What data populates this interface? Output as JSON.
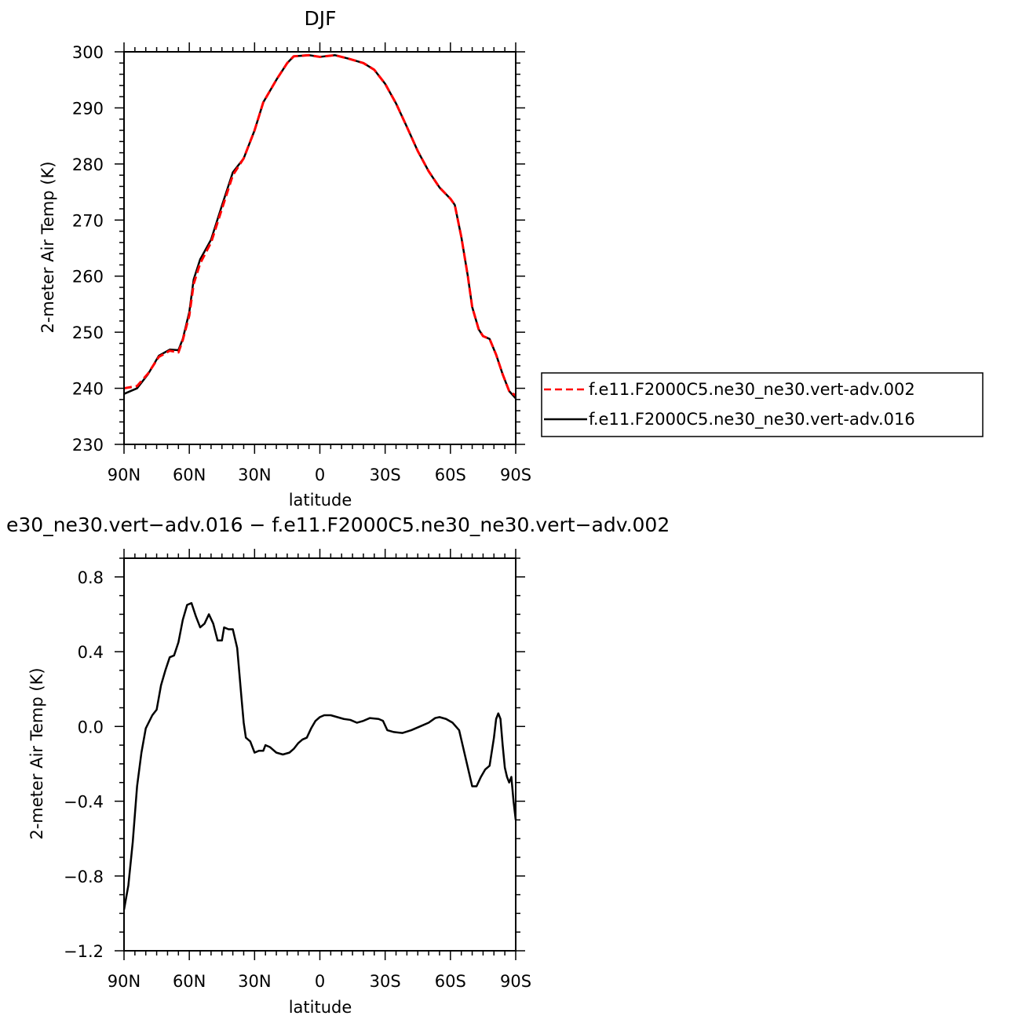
{
  "chart_data": [
    {
      "type": "line",
      "title": "DJF",
      "xlabel": "latitude",
      "ylabel": "2-meter Air Temp (K)",
      "ylim": [
        230,
        300
      ],
      "yticks": [
        230,
        240,
        250,
        260,
        270,
        280,
        290,
        300
      ],
      "xlim": [
        -90,
        90
      ],
      "xticks": [
        -90,
        -60,
        -30,
        0,
        30,
        60,
        90
      ],
      "xtick_labels": [
        "90N",
        "60N",
        "30N",
        "0",
        "30S",
        "60S",
        "90S"
      ],
      "x_axis_note": "x value = latitude position from 90N (-90) to 90S (90)",
      "legend": {
        "placement": "right",
        "entries": [
          "f.e11.F2000C5.ne30_ne30.vert-adv.002",
          "f.e11.F2000C5.ne30_ne30.vert-adv.016"
        ]
      },
      "series": [
        {
          "name": "f.e11.F2000C5.ne30_ne30.vert-adv.002",
          "color": "#ff0000",
          "dash": "dashed",
          "points": [
            [
              -90,
              240.0
            ],
            [
              -84,
              240.4
            ],
            [
              -79,
              242.6
            ],
            [
              -74,
              245.6
            ],
            [
              -69,
              246.7
            ],
            [
              -65,
              246.4
            ],
            [
              -63,
              248.6
            ],
            [
              -60,
              253.0
            ],
            [
              -58,
              258.6
            ],
            [
              -55,
              262.3
            ],
            [
              -50,
              266.0
            ],
            [
              -45,
              272.0
            ],
            [
              -40,
              278.0
            ],
            [
              -35,
              281.0
            ],
            [
              -30,
              286.0
            ],
            [
              -26,
              291.0
            ],
            [
              -20,
              295.0
            ],
            [
              -15,
              298.0
            ],
            [
              -12,
              299.2
            ],
            [
              -5,
              299.4
            ],
            [
              0,
              299.1
            ],
            [
              7,
              299.4
            ],
            [
              13,
              298.8
            ],
            [
              20,
              298.0
            ],
            [
              25,
              296.8
            ],
            [
              30,
              294.3
            ],
            [
              35,
              290.8
            ],
            [
              40,
              286.6
            ],
            [
              45,
              282.3
            ],
            [
              50,
              278.7
            ],
            [
              55,
              275.8
            ],
            [
              60,
              273.8
            ],
            [
              62,
              272.7
            ],
            [
              65,
              267.0
            ],
            [
              68,
              260.0
            ],
            [
              70,
              254.5
            ],
            [
              73,
              250.5
            ],
            [
              75,
              249.3
            ],
            [
              78,
              248.8
            ],
            [
              81,
              246.0
            ],
            [
              84,
              242.5
            ],
            [
              87,
              239.5
            ],
            [
              90,
              238.7
            ]
          ]
        },
        {
          "name": "f.e11.F2000C5.ne30_ne30.vert-adv.016",
          "color": "#000000",
          "dash": "solid",
          "points": [
            [
              -90,
              239.0
            ],
            [
              -84,
              240.0
            ],
            [
              -79,
              242.5
            ],
            [
              -74,
              245.8
            ],
            [
              -69,
              246.9
            ],
            [
              -65,
              246.8
            ],
            [
              -63,
              248.8
            ],
            [
              -60,
              253.6
            ],
            [
              -58,
              259.4
            ],
            [
              -55,
              263.0
            ],
            [
              -50,
              266.5
            ],
            [
              -45,
              272.6
            ],
            [
              -40,
              278.5
            ],
            [
              -35,
              281.0
            ],
            [
              -30,
              286.0
            ],
            [
              -26,
              291.0
            ],
            [
              -20,
              295.0
            ],
            [
              -15,
              298.0
            ],
            [
              -12,
              299.2
            ],
            [
              -5,
              299.4
            ],
            [
              0,
              299.1
            ],
            [
              7,
              299.4
            ],
            [
              13,
              298.8
            ],
            [
              20,
              298.0
            ],
            [
              25,
              296.8
            ],
            [
              30,
              294.3
            ],
            [
              35,
              290.8
            ],
            [
              40,
              286.6
            ],
            [
              45,
              282.3
            ],
            [
              50,
              278.7
            ],
            [
              55,
              275.8
            ],
            [
              60,
              273.8
            ],
            [
              62,
              272.7
            ],
            [
              65,
              267.0
            ],
            [
              68,
              260.0
            ],
            [
              70,
              254.5
            ],
            [
              73,
              250.5
            ],
            [
              75,
              249.3
            ],
            [
              78,
              248.8
            ],
            [
              81,
              246.0
            ],
            [
              84,
              242.5
            ],
            [
              87,
              239.5
            ],
            [
              90,
              238.2
            ]
          ]
        }
      ]
    },
    {
      "type": "line",
      "title": "e30_ne30.vert−adv.016 − f.e11.F2000C5.ne30_ne30.vert−adv.002",
      "xlabel": "latitude",
      "ylabel": "2-meter Air Temp (K)",
      "ylim": [
        -1.2,
        0.9
      ],
      "yticks": [
        -1.2,
        -0.8,
        -0.4,
        0.0,
        0.4,
        0.8
      ],
      "ytick_labels": [
        "−1.2",
        "−0.8",
        "−0.4",
        "0.0",
        "0.4",
        "0.8"
      ],
      "xlim": [
        -90,
        90
      ],
      "xticks": [
        -90,
        -60,
        -30,
        0,
        30,
        60,
        90
      ],
      "xtick_labels": [
        "90N",
        "60N",
        "30N",
        "0",
        "30S",
        "60S",
        "90S"
      ],
      "series": [
        {
          "color": "#000000",
          "dash": "solid",
          "points": [
            [
              -90,
              -0.98
            ],
            [
              -88,
              -0.85
            ],
            [
              -86,
              -0.62
            ],
            [
              -84,
              -0.32
            ],
            [
              -82,
              -0.14
            ],
            [
              -80,
              -0.01
            ],
            [
              -77,
              0.06
            ],
            [
              -75,
              0.09
            ],
            [
              -73,
              0.22
            ],
            [
              -71,
              0.3
            ],
            [
              -69,
              0.37
            ],
            [
              -67,
              0.38
            ],
            [
              -65,
              0.45
            ],
            [
              -63,
              0.57
            ],
            [
              -61,
              0.65
            ],
            [
              -59,
              0.66
            ],
            [
              -57,
              0.59
            ],
            [
              -55,
              0.53
            ],
            [
              -53,
              0.55
            ],
            [
              -51,
              0.6
            ],
            [
              -49,
              0.55
            ],
            [
              -47,
              0.46
            ],
            [
              -45,
              0.46
            ],
            [
              -44,
              0.53
            ],
            [
              -42,
              0.52
            ],
            [
              -40,
              0.52
            ],
            [
              -38,
              0.42
            ],
            [
              -36,
              0.15
            ],
            [
              -35,
              0.02
            ],
            [
              -34,
              -0.06
            ],
            [
              -32,
              -0.08
            ],
            [
              -30,
              -0.14
            ],
            [
              -28,
              -0.13
            ],
            [
              -26,
              -0.13
            ],
            [
              -25,
              -0.1
            ],
            [
              -23,
              -0.11
            ],
            [
              -20,
              -0.14
            ],
            [
              -17,
              -0.15
            ],
            [
              -14,
              -0.14
            ],
            [
              -12,
              -0.12
            ],
            [
              -10,
              -0.09
            ],
            [
              -8,
              -0.07
            ],
            [
              -6,
              -0.06
            ],
            [
              -4,
              -0.01
            ],
            [
              -2,
              0.03
            ],
            [
              0,
              0.05
            ],
            [
              2,
              0.06
            ],
            [
              5,
              0.06
            ],
            [
              8,
              0.05
            ],
            [
              11,
              0.04
            ],
            [
              14,
              0.035
            ],
            [
              17,
              0.02
            ],
            [
              20,
              0.03
            ],
            [
              23,
              0.045
            ],
            [
              27,
              0.04
            ],
            [
              29,
              0.03
            ],
            [
              31,
              -0.02
            ],
            [
              34,
              -0.03
            ],
            [
              38,
              -0.035
            ],
            [
              42,
              -0.02
            ],
            [
              46,
              0.0
            ],
            [
              50,
              0.02
            ],
            [
              53,
              0.045
            ],
            [
              55,
              0.05
            ],
            [
              58,
              0.04
            ],
            [
              61,
              0.02
            ],
            [
              64,
              -0.02
            ],
            [
              66,
              -0.12
            ],
            [
              68,
              -0.22
            ],
            [
              70,
              -0.32
            ],
            [
              72,
              -0.32
            ],
            [
              74,
              -0.27
            ],
            [
              76,
              -0.23
            ],
            [
              78,
              -0.21
            ],
            [
              80,
              -0.06
            ],
            [
              81,
              0.04
            ],
            [
              82,
              0.07
            ],
            [
              83,
              0.04
            ],
            [
              84,
              -0.1
            ],
            [
              85,
              -0.22
            ],
            [
              86,
              -0.27
            ],
            [
              87,
              -0.3
            ],
            [
              88,
              -0.27
            ],
            [
              89,
              -0.4
            ],
            [
              90,
              -0.5
            ]
          ]
        }
      ]
    }
  ]
}
